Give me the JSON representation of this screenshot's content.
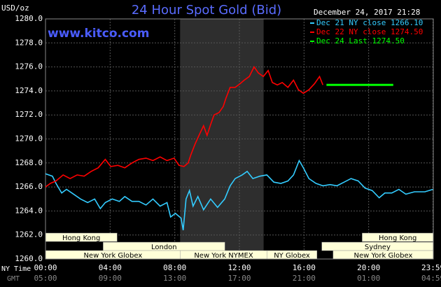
{
  "chart_data": {
    "type": "line",
    "title": "24 Hour Spot Gold (Bid)",
    "subtitle": "December 24, 2017 21:28",
    "watermark": "www.kitco.com",
    "y_label": "USD/oz",
    "x_label": "NY Time",
    "x2_label": "GMT",
    "xlim": [
      0,
      24
    ],
    "ylim": [
      1260,
      1280
    ],
    "yticks": [
      {
        "value": 1260,
        "label": "1260.0"
      },
      {
        "value": 1262,
        "label": "1262.0"
      },
      {
        "value": 1264,
        "label": "1264.0"
      },
      {
        "value": 1266,
        "label": "1266.0"
      },
      {
        "value": 1268,
        "label": "1268.0"
      },
      {
        "value": 1270,
        "label": "1270.0"
      },
      {
        "value": 1272,
        "label": "1272.0"
      },
      {
        "value": 1274,
        "label": "1274.0"
      },
      {
        "value": 1276,
        "label": "1276.0"
      },
      {
        "value": 1278,
        "label": "1278.0"
      },
      {
        "value": 1280,
        "label": "1280.0"
      }
    ],
    "xticks": [
      {
        "value": 0,
        "label": "00:00"
      },
      {
        "value": 4,
        "label": "04:00"
      },
      {
        "value": 8,
        "label": "08:00"
      },
      {
        "value": 12,
        "label": "12:00"
      },
      {
        "value": 16,
        "label": "16:00"
      },
      {
        "value": 20,
        "label": "20:00"
      },
      {
        "value": 23.98,
        "label": "23:59"
      }
    ],
    "gmt_labels": [
      "05:00",
      "09:00",
      "13:00",
      "17:00",
      "21:00",
      "01:00",
      "04:59"
    ],
    "grid": true,
    "shade": [
      8.33,
      13.5
    ],
    "sessions": [
      [
        {
          "label": "Hong Kong",
          "start": 0,
          "end": 4.43
        },
        {
          "label": "Hong Kong",
          "start": 19.6,
          "end": 24
        }
      ],
      [
        {
          "label": "London",
          "start": 3.57,
          "end": 11.1
        },
        {
          "label": "Sydney",
          "start": 17.1,
          "end": 24
        }
      ],
      [
        {
          "label": "New York Globex",
          "start": 0,
          "end": 8.35
        },
        {
          "label": "New York NYMEX",
          "start": 8.35,
          "end": 13.7
        },
        {
          "label": "NY Globex",
          "start": 13.7,
          "end": 16.8
        },
        {
          "label": "New York Globex",
          "start": 17.8,
          "end": 24
        }
      ]
    ],
    "series": [
      {
        "name": "Dec 21 NY close 1266.10",
        "color": "#33ccff",
        "x": [
          0,
          0.43,
          0.65,
          1.0,
          1.3,
          1.74,
          2.17,
          2.61,
          3.04,
          3.39,
          3.7,
          4.13,
          4.57,
          4.91,
          5.35,
          5.78,
          6.22,
          6.65,
          7.09,
          7.52,
          7.74,
          8.04,
          8.39,
          8.52,
          8.7,
          8.91,
          9.13,
          9.43,
          9.78,
          10.22,
          10.65,
          11.09,
          11.43,
          11.74,
          12.17,
          12.48,
          12.83,
          13.26,
          13.7,
          14.13,
          14.57,
          15.0,
          15.35,
          15.7,
          15.96,
          16.3,
          16.74,
          17.17,
          17.61,
          18.04,
          18.48,
          18.91,
          19.35,
          19.78,
          20.22,
          20.65,
          21.0,
          21.43,
          21.87,
          22.3,
          22.83,
          23.48,
          23.98
        ],
        "values": [
          1267.1,
          1266.9,
          1266.3,
          1265.5,
          1265.8,
          1265.4,
          1265.0,
          1264.7,
          1265.0,
          1264.2,
          1264.7,
          1265.0,
          1264.8,
          1265.2,
          1264.8,
          1264.8,
          1264.5,
          1265.0,
          1264.4,
          1264.7,
          1263.5,
          1263.8,
          1263.4,
          1262.4,
          1265.0,
          1265.7,
          1264.4,
          1265.2,
          1264.1,
          1265.0,
          1264.3,
          1265.0,
          1266.1,
          1266.7,
          1267.0,
          1267.3,
          1266.7,
          1266.9,
          1267.0,
          1266.4,
          1266.3,
          1266.5,
          1267.0,
          1268.2,
          1267.6,
          1266.7,
          1266.3,
          1266.1,
          1266.2,
          1266.1,
          1266.4,
          1266.7,
          1266.5,
          1265.9,
          1265.7,
          1265.1,
          1265.5,
          1265.5,
          1265.8,
          1265.4,
          1265.6,
          1265.6,
          1265.8
        ]
      },
      {
        "name": "Dec 22 NY close 1274.50",
        "color": "#ff0000",
        "x": [
          0,
          0.3,
          0.65,
          1.09,
          1.52,
          1.96,
          2.39,
          2.83,
          3.26,
          3.7,
          4.04,
          4.48,
          4.91,
          5.35,
          5.78,
          6.22,
          6.65,
          7.09,
          7.52,
          7.96,
          8.26,
          8.57,
          8.83,
          9.0,
          9.26,
          9.57,
          9.78,
          10.0,
          10.22,
          10.43,
          10.74,
          11.0,
          11.17,
          11.43,
          11.74,
          12.04,
          12.3,
          12.61,
          12.91,
          13.17,
          13.48,
          13.78,
          14.04,
          14.35,
          14.65,
          15.0,
          15.35,
          15.65,
          15.96,
          16.3,
          16.65,
          16.96,
          17.17
        ],
        "values": [
          1266.0,
          1266.3,
          1266.5,
          1267.0,
          1266.7,
          1267.0,
          1266.9,
          1267.3,
          1267.6,
          1268.3,
          1267.7,
          1267.8,
          1267.6,
          1268.0,
          1268.3,
          1268.4,
          1268.2,
          1268.5,
          1268.2,
          1268.4,
          1267.8,
          1267.7,
          1268.0,
          1268.7,
          1269.6,
          1270.5,
          1271.1,
          1270.3,
          1271.2,
          1272.0,
          1272.2,
          1272.7,
          1273.4,
          1274.3,
          1274.3,
          1274.6,
          1274.9,
          1275.2,
          1276.0,
          1275.5,
          1275.2,
          1275.7,
          1274.7,
          1274.5,
          1274.7,
          1274.3,
          1274.9,
          1274.1,
          1273.8,
          1274.1,
          1274.6,
          1275.2,
          1274.5
        ]
      },
      {
        "name": "Dec 24 Last 1274.50",
        "color": "#00ff00",
        "x": [
          17.39,
          21.52
        ],
        "values": [
          1274.5,
          1274.5
        ]
      }
    ]
  }
}
